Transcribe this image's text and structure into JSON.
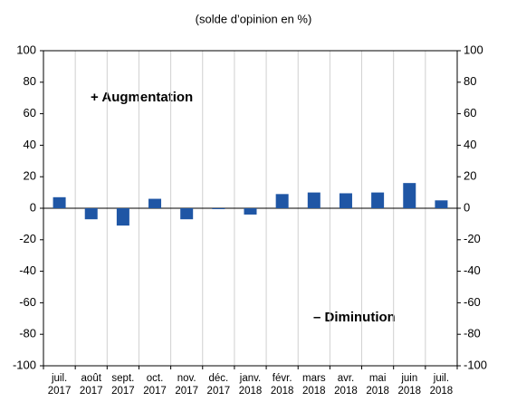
{
  "chart_data": {
    "type": "bar",
    "subtitle": "(solde d’opinion en %)",
    "categories": [
      "juil. 2017",
      "août 2017",
      "sept. 2017",
      "oct. 2017",
      "nov. 2017",
      "déc. 2017",
      "janv. 2018",
      "févr. 2018",
      "mars 2018",
      "avr. 2018",
      "mai 2018",
      "juin 2018",
      "juil. 2018"
    ],
    "values": [
      7,
      -7,
      -11,
      6,
      -7,
      -0.5,
      -4,
      9,
      10,
      9.5,
      10,
      16,
      5
    ],
    "color": "#1f56a5",
    "ylim": [
      -100,
      100
    ],
    "yticks": [
      -100,
      -80,
      -60,
      -40,
      -20,
      0,
      20,
      40,
      60,
      80,
      100
    ],
    "y2lim": [
      -100,
      100
    ],
    "y2ticks": [
      -100,
      -80,
      -60,
      -40,
      -20,
      0,
      20,
      40,
      60,
      80,
      100
    ],
    "annotations": [
      "+ Augmentation",
      "– Diminution"
    ],
    "grid": "vertical"
  }
}
